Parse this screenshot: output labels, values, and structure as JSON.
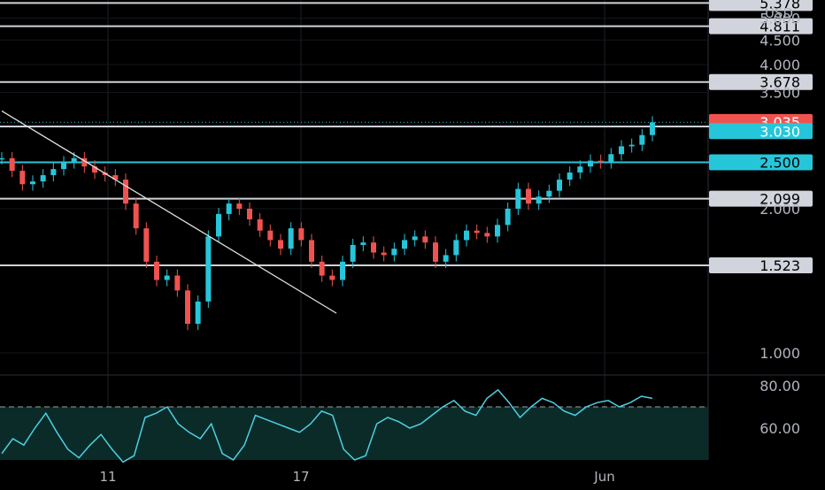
{
  "chart_data": {
    "type": "candlestick",
    "currency": "USD",
    "y_axis_labels": [
      "5.000",
      "4.500",
      "4.000",
      "3.500",
      "2.000",
      "1.000"
    ],
    "x_axis_labels": [
      "11",
      "17",
      "Jun"
    ],
    "x_axis_partial_label": "5.378",
    "price_lines": [
      {
        "value": 5.378,
        "label": "5.378",
        "style": "white"
      },
      {
        "value": 4.811,
        "label": "4.811",
        "style": "white"
      },
      {
        "value": 3.678,
        "label": "3.678",
        "style": "white"
      },
      {
        "value": 2.97,
        "label": "2.970",
        "style": "white"
      },
      {
        "value": 2.5,
        "label": "2.500",
        "style": "cyan"
      },
      {
        "value": 2.099,
        "label": "2.099",
        "style": "white"
      },
      {
        "value": 1.523,
        "label": "1.523",
        "style": "white"
      }
    ],
    "last_price": {
      "value": 3.03,
      "label": "3.030"
    },
    "alert_price": {
      "value": 3.035,
      "label": "3.035"
    },
    "trendline": {
      "from": {
        "bar": 0,
        "price": 3.2
      },
      "to": {
        "bar": 127,
        "price": 1.21
      }
    },
    "ohlc_path_close": [
      2.55,
      2.4,
      2.25,
      2.28,
      2.35,
      2.42,
      2.5,
      2.55,
      2.45,
      2.38,
      2.35,
      2.3,
      2.05,
      1.82,
      1.55,
      1.42,
      1.45,
      1.35,
      1.15,
      1.28,
      1.75,
      1.95,
      2.05,
      2.0,
      1.9,
      1.8,
      1.72,
      1.65,
      1.82,
      1.72,
      1.55,
      1.45,
      1.42,
      1.55,
      1.68,
      1.7,
      1.62,
      1.6,
      1.65,
      1.72,
      1.75,
      1.7,
      1.55,
      1.6,
      1.72,
      1.8,
      1.78,
      1.75,
      1.85,
      2.0,
      2.2,
      2.05,
      2.12,
      2.18,
      2.3,
      2.38,
      2.45,
      2.52,
      2.5,
      2.6,
      2.7,
      2.72,
      2.85,
      3.03
    ],
    "rsi": {
      "reference_level": 70,
      "y_axis_labels": [
        "80.00",
        "60.00"
      ],
      "values": [
        48,
        55,
        52,
        60,
        67,
        58,
        50,
        46,
        52,
        57,
        50,
        44,
        47,
        65,
        67,
        70,
        62,
        58,
        55,
        62,
        48,
        45,
        52,
        66,
        64,
        62,
        60,
        58,
        62,
        68,
        66,
        50,
        45,
        47,
        62,
        65,
        63,
        60,
        62,
        66,
        70,
        73,
        68,
        66,
        74,
        78,
        72,
        65,
        70,
        74,
        72,
        68,
        66,
        70,
        72,
        73,
        70,
        72,
        75,
        74
      ]
    }
  }
}
